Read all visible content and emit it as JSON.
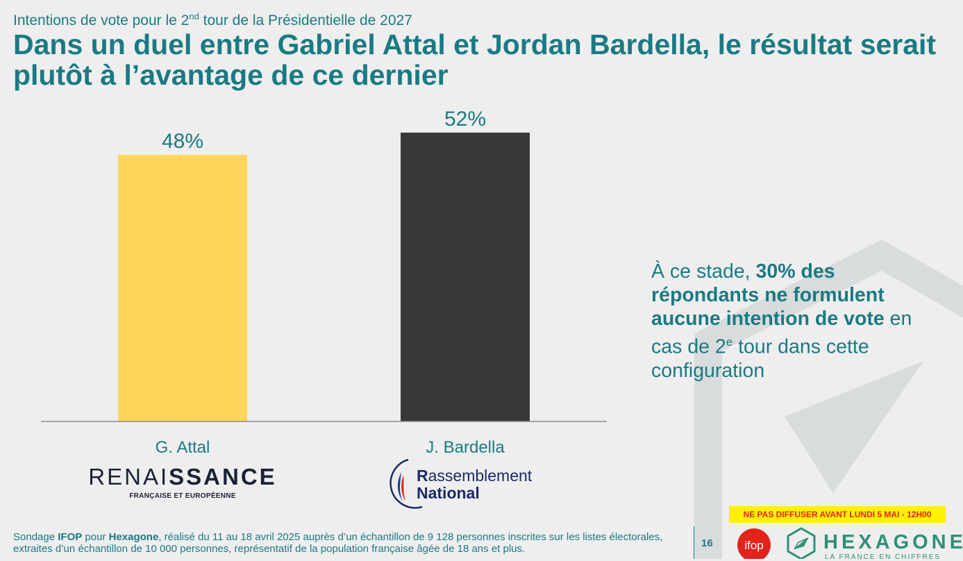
{
  "header": {
    "subtitle_pre": "Intentions de vote pour le 2",
    "subtitle_sup": "nd",
    "subtitle_post": " tour de la Présidentielle de 2027",
    "title": "Dans un duel entre Gabriel Attal et Jordan Bardella, le résultat serait plutôt à l’avantage de ce dernier"
  },
  "chart_data": {
    "type": "bar",
    "categories": [
      "G. Attal",
      "J. Bardella"
    ],
    "values": [
      48,
      52
    ],
    "value_labels": [
      "48%",
      "52%"
    ],
    "colors": [
      "#ffd65a",
      "#383838"
    ],
    "ylim": [
      0,
      55
    ],
    "title": "",
    "xlabel": "",
    "ylabel": "",
    "grid": false
  },
  "parties": {
    "renaissance_light": "RENAI",
    "renaissance_bold": "SSANCE",
    "renaissance_sub": "FRANÇAISE ET EUROPÉENNE",
    "rn_line1_initial": "R",
    "rn_line1_rest": "assemblement",
    "rn_line2": "National"
  },
  "side_note": {
    "part1": "À ce stade, ",
    "bold": "30% des répondants ne formulent aucune intention de vote",
    "part2": " en cas de 2",
    "sup": "e",
    "part3": " tour dans cette configuration"
  },
  "footer": {
    "banner": "NE PAS DIFFUSER AVANT LUNDI 5 MAI - 12H00",
    "note_pre": "Sondage ",
    "note_ifop": "IFOP",
    "note_mid": " pour ",
    "note_hex": "Hexagone",
    "note_post": ", réalisé du 11 au 18 avril 2025 auprès d’un échantillon de 9 128 personnes inscrites sur les listes électorales, extraites d’un échantillon de 10 000 personnes, représentatif de la population française âgée de 18 ans et plus.",
    "page_number": "16",
    "ifop_logo_text": "ifop",
    "hexagone_name": "HEXAGONE",
    "hexagone_tagline": "LA FRANCE EN CHIFFRES"
  },
  "colors": {
    "accent": "#1a7a84",
    "attal": "#ffd65a",
    "bardella": "#383838",
    "banner_bg": "#fff200",
    "banner_text": "#e2231a"
  }
}
